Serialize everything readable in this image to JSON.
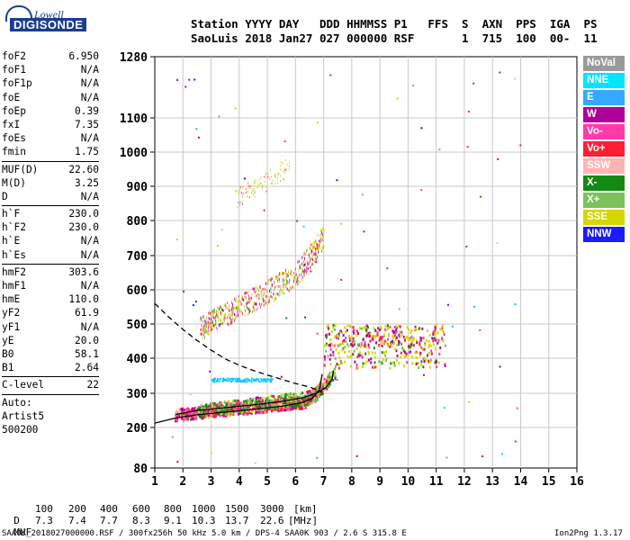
{
  "logo": {
    "top": "Lowell",
    "main": "DIGISONDE"
  },
  "header": {
    "line1": "Station YYYY DAY   DDD HHMMSS P1   FFS  S  AXN  PPS  IGA  PS",
    "line2": "SaoLuis 2018 Jan27 027 000000 RSF       1  715  100  00-  11"
  },
  "params": {
    "group1": [
      {
        "name": "foF2",
        "value": "6.950"
      },
      {
        "name": "foF1",
        "value": "N/A"
      },
      {
        "name": "foF1p",
        "value": "N/A"
      },
      {
        "name": "foE",
        "value": "N/A"
      },
      {
        "name": "foEp",
        "value": "0.39"
      },
      {
        "name": "fxI",
        "value": "7.35"
      },
      {
        "name": "foEs",
        "value": "N/A"
      },
      {
        "name": "fmin",
        "value": "1.75"
      }
    ],
    "group2": [
      {
        "name": "MUF(D)",
        "value": "22.60"
      },
      {
        "name": "M(D)",
        "value": "3.25"
      },
      {
        "name": "D",
        "value": "N/A"
      }
    ],
    "group3": [
      {
        "name": "h`F",
        "value": "230.0"
      },
      {
        "name": "h`F2",
        "value": "230.0"
      },
      {
        "name": "h`E",
        "value": "N/A"
      },
      {
        "name": "h`Es",
        "value": "N/A"
      }
    ],
    "group4": [
      {
        "name": "hmF2",
        "value": "303.6"
      },
      {
        "name": "hmF1",
        "value": "N/A"
      },
      {
        "name": "hmE",
        "value": "110.0"
      },
      {
        "name": "yF2",
        "value": "61.9"
      },
      {
        "name": "yF1",
        "value": "N/A"
      },
      {
        "name": "yE",
        "value": "20.0"
      },
      {
        "name": "B0",
        "value": "58.1"
      },
      {
        "name": "B1",
        "value": "2.64"
      }
    ],
    "group5": [
      {
        "name": "C-level",
        "value": "22"
      }
    ],
    "autoscale": [
      "Auto:",
      "Artist5",
      "500200"
    ]
  },
  "legend": [
    {
      "label": "NoVal",
      "color": "#9a9a9a"
    },
    {
      "label": "NNE",
      "color": "#00e5ff"
    },
    {
      "label": "E",
      "color": "#33aaff"
    },
    {
      "label": "W",
      "color": "#b0009a"
    },
    {
      "label": "Vo-",
      "color": "#ff3aa8"
    },
    {
      "label": "Vo+",
      "color": "#ff1e32"
    },
    {
      "label": "SSW",
      "color": "#ffb3b3"
    },
    {
      "label": "X-",
      "color": "#138a13"
    },
    {
      "label": "X+",
      "color": "#7bc25a"
    },
    {
      "label": "SSE",
      "color": "#d6d600"
    },
    {
      "label": "NNW",
      "color": "#1a1aff"
    }
  ],
  "chart_data": {
    "type": "scatter",
    "xlabel": "",
    "ylabel": "",
    "xlim": [
      1,
      16
    ],
    "x_ticks": [
      1,
      2,
      3,
      4,
      5,
      6,
      7,
      8,
      9,
      10,
      11,
      12,
      13,
      14,
      15,
      16
    ],
    "y_ticks": [
      80,
      200,
      300,
      400,
      500,
      600,
      700,
      800,
      900,
      1000,
      1100,
      1280
    ],
    "y_scale": "nonlinear (compressed near 80 and above 1100)",
    "grid": true,
    "traces": [
      {
        "series": "O-trace profile (solid)",
        "style": "solid",
        "color": "#000000",
        "x": [
          1.0,
          1.75,
          2.5,
          3.5,
          4.5,
          5.5,
          6.2,
          6.6,
          6.85,
          6.95
        ],
        "y": [
          213,
          228,
          237,
          245,
          253,
          262,
          272,
          285,
          310,
          355
        ]
      },
      {
        "series": "X-trace profile (solid)",
        "style": "solid",
        "color": "#000000",
        "x": [
          1.75,
          2.5,
          3.5,
          4.5,
          5.5,
          6.3,
          6.8,
          7.1,
          7.3,
          7.35
        ],
        "y": [
          238,
          250,
          258,
          266,
          276,
          288,
          302,
          318,
          340,
          365
        ]
      },
      {
        "series": "Density profile (dashed)",
        "style": "dashed",
        "color": "#000000",
        "x": [
          1.0,
          1.5,
          2.0,
          2.5,
          3.0,
          3.5,
          4.0,
          4.5,
          5.0,
          5.5,
          6.0,
          6.5,
          6.95
        ],
        "y": [
          560,
          520,
          484,
          452,
          424,
          398,
          380,
          365,
          352,
          340,
          328,
          318,
          303.6
        ]
      }
    ],
    "echo_regions": [
      {
        "band": "F2 O-trace",
        "x": [
          1.7,
          7.0
        ],
        "y": [
          230,
          360
        ]
      },
      {
        "band": "F2 X-trace",
        "x": [
          2.5,
          7.4
        ],
        "y": [
          240,
          400
        ]
      },
      {
        "band": "second hop",
        "x": [
          2.6,
          7.0
        ],
        "y": [
          480,
          760
        ]
      },
      {
        "band": "third hop",
        "x": [
          3.8,
          5.8
        ],
        "y": [
          860,
          1000
        ]
      },
      {
        "band": "spread-F oblique",
        "x": [
          7.0,
          11.5
        ],
        "y": [
          380,
          520
        ]
      }
    ]
  },
  "muf_table": {
    "d_label": "D",
    "d_values": [
      "100",
      "200",
      "400",
      "600",
      "800",
      "1000",
      "1500",
      "3000"
    ],
    "d_unit": "[km]",
    "muf_label": "MUF",
    "muf_values": [
      "7.3",
      "7.4",
      "7.7",
      "8.3",
      "9.1",
      "10.3",
      "13.7",
      "22.6"
    ],
    "muf_unit": "[MHz]"
  },
  "footer": {
    "left": "SAA0K_2018027000000.RSF / 300fx256h 50 kHz 5.0 km / DPS-4 SAA0K 903 / 2.6 S 315.8 E",
    "right": "Ion2Png 1.3.17"
  }
}
